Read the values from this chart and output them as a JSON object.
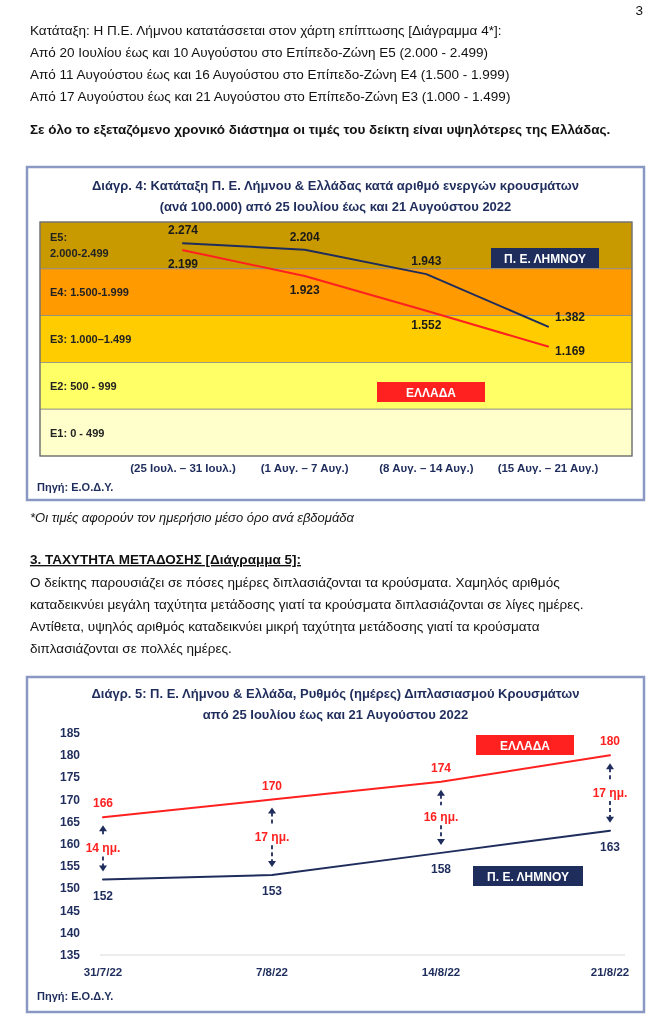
{
  "chart_data": [
    {
      "type": "line",
      "title": "Διάγρ. 4: Κατάταξη Π. Ε. Λήμνου & Ελλάδας  κατά αριθμό ενεργών κρουσμάτων\n(ανά 100.000) από 25 Ιουλίου έως και 21 Αυγούστου 2022",
      "categories": [
        "(25 Ιουλ. – 31 Ιουλ.)",
        "(1 Αυγ. – 7 Αυγ.)",
        "(8 Αυγ. – 14 Αυγ.)",
        "(15 Αυγ. – 21 Αυγ.)"
      ],
      "series": [
        {
          "name": "Π. Ε. ΛΗΜΝΟΥ",
          "color": "#1f2d5c",
          "values": [
            2274,
            2204,
            1943,
            1382
          ],
          "value_labels": [
            "2.274",
            "2.204",
            "1.943",
            "1.382"
          ]
        },
        {
          "name": "ΕΛΛΑΔΑ",
          "color": "#ff2020",
          "values": [
            2199,
            1923,
            1552,
            1169
          ],
          "value_labels": [
            "2.199",
            "1.923",
            "1.552",
            "1.169"
          ]
        }
      ],
      "ylim": [
        0,
        2500
      ],
      "tick_labels": "x",
      "grid": false,
      "marker": "none",
      "line_style": "solid",
      "bands": [
        {
          "axis": "y",
          "from": 2000,
          "to": 2500,
          "label": "E5:\n2.000-2.499",
          "color": "#c99a00"
        },
        {
          "axis": "y",
          "from": 1500,
          "to": 2000,
          "label": "E4: 1.500-1.999",
          "color": "#ff9a00"
        },
        {
          "axis": "y",
          "from": 1000,
          "to": 1500,
          "label": "E3: 1.000–1.499",
          "color": "#ffcc00"
        },
        {
          "axis": "y",
          "from": 500,
          "to": 1000,
          "label": "E2: 500 - 999",
          "color": "#ffff66"
        },
        {
          "axis": "y",
          "from": 0,
          "to": 500,
          "label": "E1: 0 - 499",
          "color": "#ffffcc"
        }
      ],
      "annotations": [
        "3",
        "Κατάταξη: Η Π.Ε. Λήμνου κατατάσσεται στον χάρτη επίπτωσης  [Διάγραμμα 4*]:",
        "Από 20 Ιουλίου έως και 10 Αυγούστου στο Επίπεδο-Ζώνη Ε5 (2.000 - 2.499)",
        "Από 11 Αυγούστου έως και 16 Αυγούστου στο Επίπεδο-Ζώνη Ε4 (1.500 - 1.999)",
        "Από 17 Αυγούστου έως και 21 Αυγούστου στο Επίπεδο-Ζώνη Ε3 (1.000 - 1.499)",
        "Σε όλο το εξεταζόμενο χρονικό διάστημα οι τιμές του δείκτη είναι υψηλότερες της Ελλάδας.",
        "Πηγή: Ε.Ο.Δ.Υ.",
        "*Οι τιμές αφορούν τον ημερήσιο μέσο όρο ανά εβδομάδα"
      ]
    },
    {
      "type": "line",
      "title": "Διάγρ. 5: Π. Ε. Λήμνου & Ελλάδα, Ρυθμός (ημέρες) Διπλασιασμού Κρουσμάτων\nαπό 25 Ιουλίου έως και 21 Αυγούστου 2022",
      "categories": [
        "31/7/22",
        "7/8/22",
        "14/8/22",
        "21/8/22"
      ],
      "series": [
        {
          "name": "ΕΛΛΑΔΑ",
          "color": "#ff2020",
          "values": [
            166,
            170,
            174,
            180
          ]
        },
        {
          "name": "Π. Ε. ΛΗΜΝΟΥ",
          "color": "#1f2d5c",
          "values": [
            152,
            153,
            158,
            163
          ]
        }
      ],
      "ylim": [
        135,
        185
      ],
      "yticks": [
        135,
        140,
        145,
        150,
        155,
        160,
        165,
        170,
        175,
        180,
        185
      ],
      "grid": false,
      "marker": "none",
      "line_style": "solid",
      "data_labels": true,
      "annotations": [
        "3. ΤΑΧΥΤΗΤΑ ΜΕΤΑΔΟΣΗΣ [Διάγραμμα 5]:",
        "Ο δείκτης παρουσιάζει σε πόσες ημέρες διπλασιάζονται τα κρούσματα. Χαμηλός αριθμός",
        "καταδεικνύει μεγάλη ταχύτητα μετάδοσης γιατί τα κρούσματα διπλασιάζονται σε λίγες ημέρες.",
        "Αντίθετα, υψηλός αριθμός καταδεικνύει μικρή ταχύτητα μετάδοσης γιατί τα κρούσματα",
        "διπλασιάζονται σε πολλές ημέρες.",
        "Πηγή: Ε.Ο.Δ.Υ.",
        "14 ημ.",
        "17 ημ.",
        "16 ημ.",
        "17 ημ."
      ]
    }
  ]
}
